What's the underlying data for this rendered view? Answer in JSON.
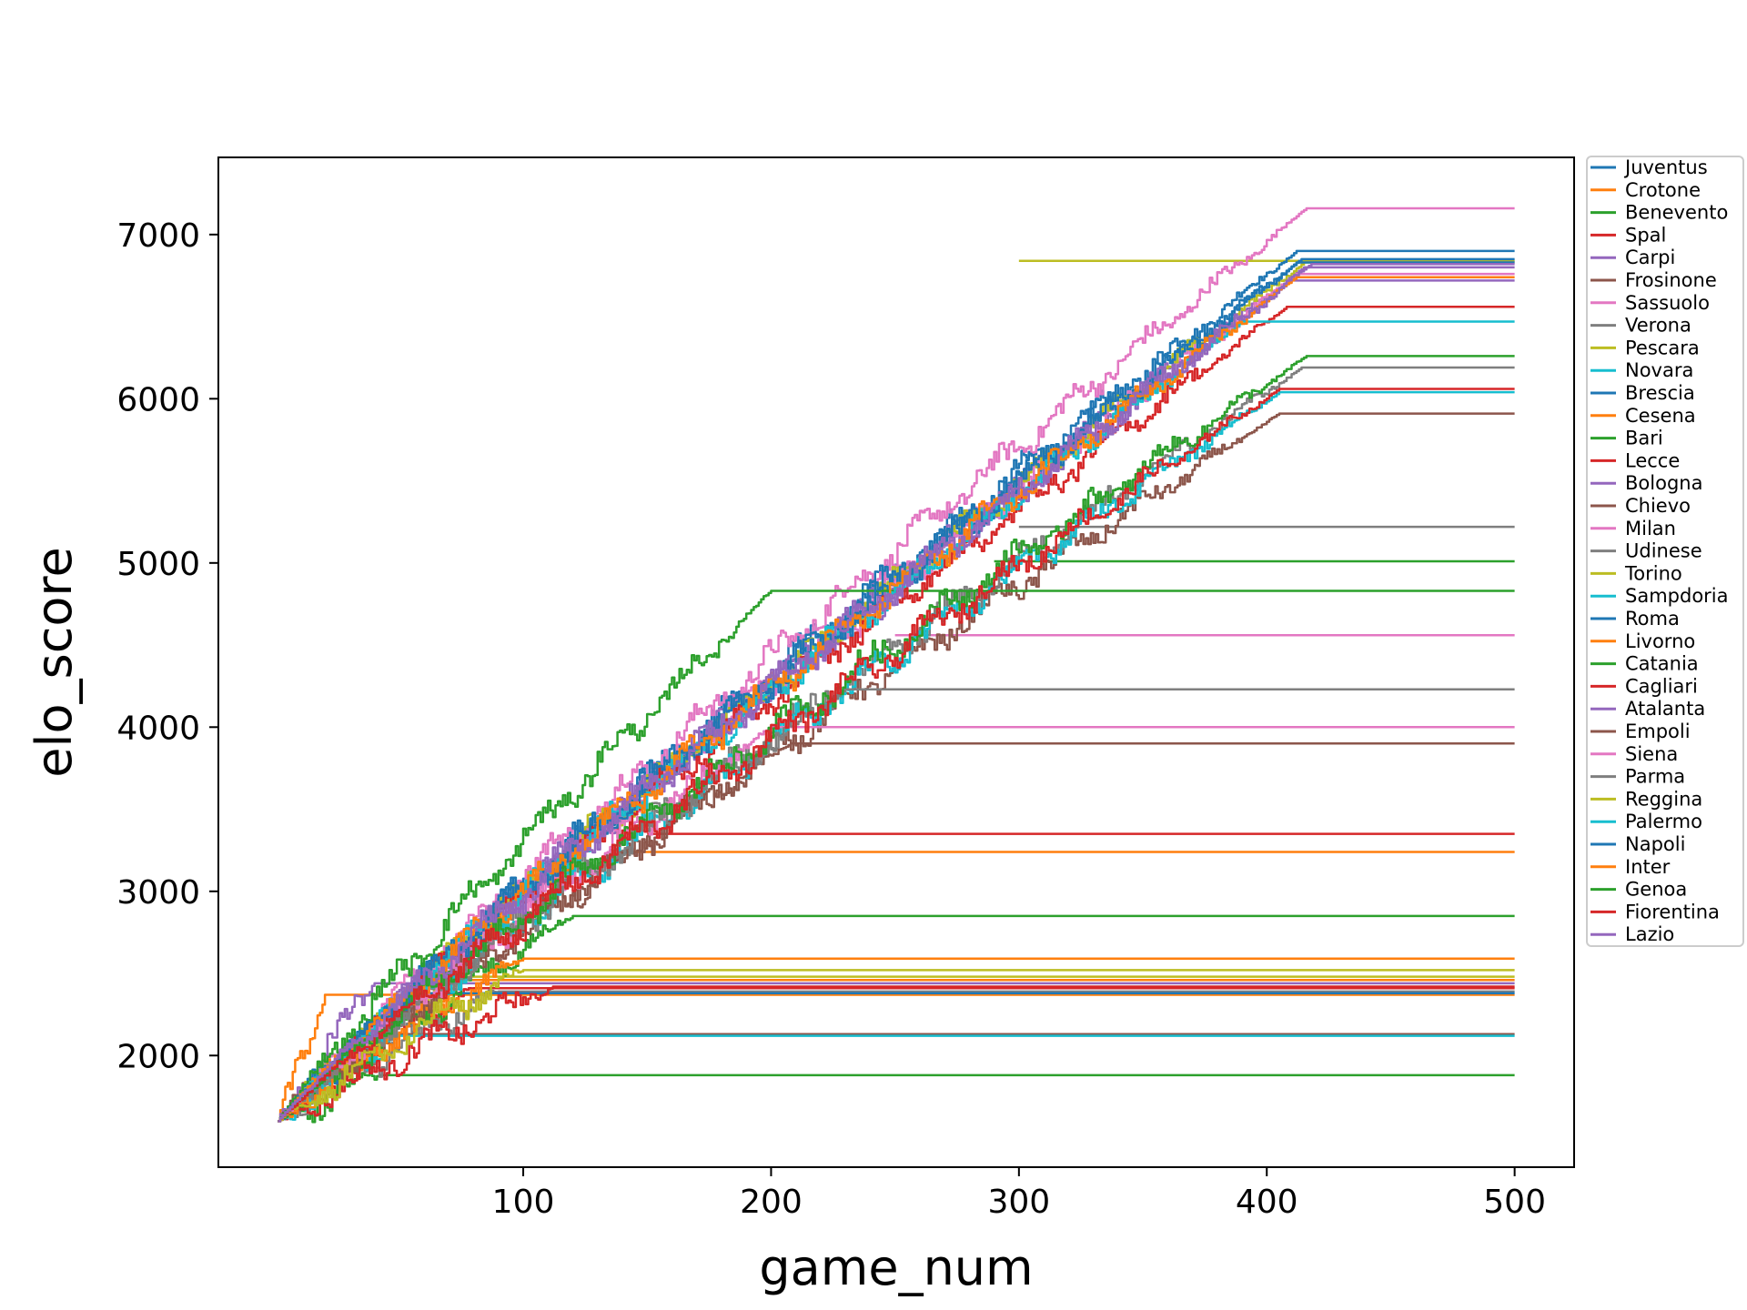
{
  "chart_data": {
    "type": "line",
    "title": "",
    "xlabel": "game_num",
    "ylabel": "elo_score",
    "xlim": [
      -23,
      524
    ],
    "ylim": [
      1320,
      7470
    ],
    "xticks": [
      100,
      200,
      300,
      400,
      500
    ],
    "yticks": [
      2000,
      3000,
      4000,
      5000,
      6000,
      7000
    ],
    "xtick_labels": [
      "100",
      "200",
      "300",
      "400",
      "500"
    ],
    "ytick_labels": [
      "2000",
      "3000",
      "4000",
      "5000",
      "6000",
      "7000"
    ],
    "grid": false,
    "legend_position": "outside-right-top",
    "x_start": 1,
    "x_end": 500,
    "start_value": 1600,
    "series": [
      {
        "name": "Juventus",
        "color": "#1f77b4",
        "end_game": 412,
        "final": 6900
      },
      {
        "name": "Crotone",
        "color": "#ff7f0e",
        "end_game": 20,
        "final": 2370
      },
      {
        "name": "Benevento",
        "color": "#2ca02c",
        "end_game": 42,
        "final": 1880
      },
      {
        "name": "Spal",
        "color": "#d62728",
        "end_game": 80,
        "final": 2410
      },
      {
        "name": "Carpi",
        "color": "#9467bd",
        "end_game": 40,
        "final": 2440
      },
      {
        "name": "Frosinone",
        "color": "#8c564b",
        "end_game": 50,
        "final": 2130
      },
      {
        "name": "Sassuolo",
        "color": "#e377c2",
        "end_game": 416,
        "final": 7160
      },
      {
        "name": "Verona",
        "color": "#7f7f7f",
        "end_game": 90,
        "final": 2390
      },
      {
        "name": "Pescara",
        "color": "#bcbd22",
        "end_game": 70,
        "final": 2480
      },
      {
        "name": "Novara",
        "color": "#17becf",
        "end_game": 48,
        "final": 2120
      },
      {
        "name": "Brescia",
        "color": "#1f77b4",
        "end_game": 60,
        "final": 2380
      },
      {
        "name": "Cesena",
        "color": "#ff7f0e",
        "end_game": 76,
        "final": 2460
      },
      {
        "name": "Bari",
        "color": "#2ca02c",
        "end_game": 120,
        "final": 2850
      },
      {
        "name": "Lecce",
        "color": "#d62728",
        "end_game": 112,
        "final": 2420
      },
      {
        "name": "Bologna",
        "color": "#9467bd",
        "end_game": 415,
        "final": 6800
      },
      {
        "name": "Chievo",
        "color": "#8c564b",
        "end_game": 405,
        "final": 5910
      },
      {
        "name": "Milan",
        "color": "#e377c2",
        "end_game": 412,
        "final": 6760
      },
      {
        "name": "Udinese",
        "color": "#7f7f7f",
        "end_game": 414,
        "final": 6190
      },
      {
        "name": "Torino",
        "color": "#bcbd22",
        "end_game": 415,
        "final": 6830
      },
      {
        "name": "Sampdoria",
        "color": "#17becf",
        "end_game": 405,
        "final": 6040
      },
      {
        "name": "Roma",
        "color": "#1f77b4",
        "end_game": 414,
        "final": 6850
      },
      {
        "name": "Livorno",
        "color": "#ff7f0e",
        "end_game": 100,
        "final": 2590
      },
      {
        "name": "Catania",
        "color": "#2ca02c",
        "end_game": 200,
        "final": 4830
      },
      {
        "name": "Cagliari",
        "color": "#d62728",
        "end_game": 408,
        "final": 6560
      },
      {
        "name": "Atalanta",
        "color": "#9467bd",
        "end_game": 410,
        "final": 6720
      },
      {
        "name": "Empoli",
        "color": "#8c564b",
        "end_game": 208,
        "final": 3900
      },
      {
        "name": "Siena",
        "color": "#e377c2",
        "end_game": 200,
        "final": 4000
      },
      {
        "name": "Parma",
        "color": "#7f7f7f",
        "end_game": 230,
        "final": 4230
      },
      {
        "name": "Reggina",
        "color": "#bcbd22",
        "end_game": 100,
        "final": 2520
      },
      {
        "name": "Palermo",
        "color": "#17becf",
        "end_game": 390,
        "final": 6470
      },
      {
        "name": "Napoli",
        "color": "#1f77b4",
        "end_game": 412,
        "final": 6830
      },
      {
        "name": "Inter",
        "color": "#ff7f0e",
        "end_game": 412,
        "final": 6740
      },
      {
        "name": "Genoa",
        "color": "#2ca02c",
        "end_game": 416,
        "final": 6260
      },
      {
        "name": "Fiorentina",
        "color": "#d62728",
        "end_game": 405,
        "final": 6060
      },
      {
        "name": "Lazio",
        "color": "#9467bd",
        "end_game": 418,
        "final": 6820
      }
    ],
    "reference_plateaus": [
      {
        "color": "#7f7f7f",
        "from_game": 300,
        "value": 5220
      },
      {
        "color": "#2ca02c",
        "from_game": 290,
        "value": 5010
      },
      {
        "color": "#e377c2",
        "from_game": 250,
        "value": 4560
      },
      {
        "color": "#d62728",
        "from_game": 150,
        "value": 3350
      },
      {
        "color": "#ff7f0e",
        "from_game": 138,
        "value": 3240
      },
      {
        "color": "#bcbd22",
        "from_game": 300,
        "value": 6840
      }
    ]
  }
}
